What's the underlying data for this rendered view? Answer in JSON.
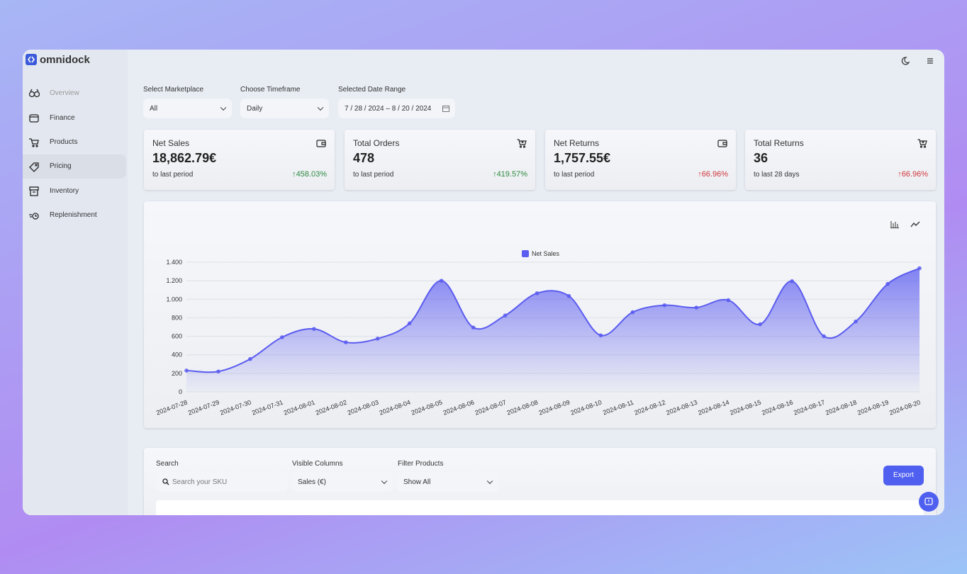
{
  "brand": "omnidock",
  "sidebar": {
    "items": [
      "Overview",
      "Finance",
      "Products",
      "Pricing",
      "Inventory",
      "Replenishment"
    ]
  },
  "filters": [
    {
      "label": "Select Marketplace",
      "value": "All"
    },
    {
      "label": "Choose Timeframe",
      "value": "Daily"
    },
    {
      "label": "Selected Date Range",
      "value": "7 / 28 / 2024  –  8 / 20 / 2024"
    }
  ],
  "kpis": [
    {
      "title": "Net Sales",
      "value": "18,862.79€",
      "note": "to last period",
      "change": "↑458.03%",
      "change_color": "#2f8a43"
    },
    {
      "title": "Total Orders",
      "value": "478",
      "note": "to last period",
      "change": "↑419.57%",
      "change_color": "#2f8a43"
    },
    {
      "title": "Net Returns",
      "value": "1,757.55€",
      "note": "to last period",
      "change": "↑66.96%",
      "change_color": "#d0393d"
    },
    {
      "title": "Total Returns",
      "value": "36",
      "note": "to last 28 days",
      "change": "↑66.96%",
      "change_color": "#d0393d"
    }
  ],
  "chart_data": {
    "type": "line",
    "area": true,
    "grid": true,
    "categories": [
      "2024-07-28",
      "2024-07-29",
      "2024-07-30",
      "2024-07-31",
      "2024-08-01",
      "2024-08-02",
      "2024-08-03",
      "2024-08-04",
      "2024-08-05",
      "2024-08-06",
      "2024-08-07",
      "2024-08-08",
      "2024-08-09",
      "2024-08-10",
      "2024-08-11",
      "2024-08-12",
      "2024-08-13",
      "2024-08-14",
      "2024-08-15",
      "2024-08-16",
      "2024-08-17",
      "2024-08-18",
      "2024-08-19",
      "2024-08-20"
    ],
    "series": [
      {
        "name": "Net Sales",
        "color": "#5b5cf0",
        "values": [
          230,
          220,
          355,
          590,
          680,
          535,
          575,
          740,
          1200,
          695,
          825,
          1065,
          1035,
          610,
          860,
          935,
          910,
          990,
          730,
          1195,
          600,
          760,
          1165,
          1335
        ]
      }
    ],
    "ylim": [
      0,
      1400
    ],
    "yticks": [
      0,
      200,
      400,
      600,
      800,
      {
        "value": 1000,
        "label": "1.000"
      },
      {
        "value": 1200,
        "label": "1.200"
      },
      {
        "value": 1400,
        "label": "1.400"
      }
    ]
  },
  "table_controls": {
    "search_label": "Search",
    "search_placeholder": "Search your SKU",
    "columns_label": "Visible Columns",
    "columns_value": "Sales (€)",
    "filter_label": "Filter Products",
    "filter_value": "Show All",
    "export": "Export"
  }
}
